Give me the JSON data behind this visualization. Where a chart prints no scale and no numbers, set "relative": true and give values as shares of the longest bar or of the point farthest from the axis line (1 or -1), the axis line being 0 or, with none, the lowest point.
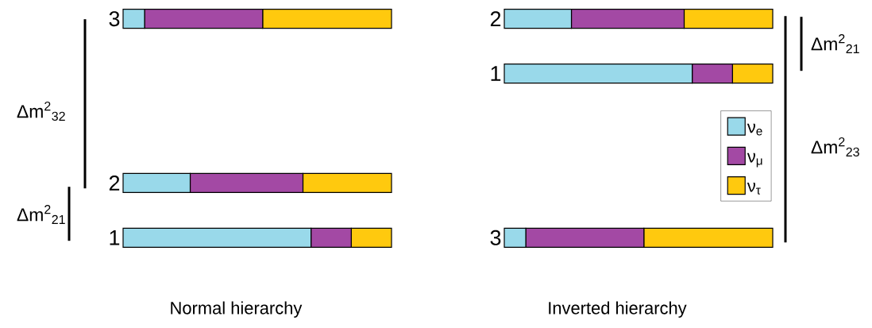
{
  "chart_data": [
    {
      "type": "bar",
      "orientation": "horizontal",
      "stacked": true,
      "relative": true,
      "xlabel": "Normal hierarchy",
      "categories": [
        "3",
        null,
        null,
        "2",
        "1"
      ],
      "series": [
        {
          "color": "#99d9ea",
          "values": [
            0.08,
            null,
            null,
            0.25,
            0.7
          ]
        },
        {
          "color": "#a349a4",
          "values": [
            0.44,
            null,
            null,
            0.42,
            0.15
          ]
        },
        {
          "color": "#ffc90e",
          "values": [
            0.48,
            null,
            null,
            0.33,
            0.15
          ]
        }
      ],
      "annotations": [
        "Δm$^{2}$$_{32}$",
        "Δm$^{2}$$_{21}$"
      ]
    },
    {
      "type": "bar",
      "orientation": "horizontal",
      "stacked": true,
      "relative": true,
      "xlabel": "Inverted hierarchy",
      "categories": [
        "2",
        "1",
        null,
        null,
        "3"
      ],
      "legend": "right",
      "series": [
        {
          "name": "ν$_{e}$",
          "color": "#99d9ea",
          "values": [
            0.25,
            0.7,
            null,
            null,
            0.08
          ]
        },
        {
          "name": "ν$_{μ}$",
          "color": "#a349a4",
          "values": [
            0.42,
            0.15,
            null,
            null,
            0.44
          ]
        },
        {
          "name": "ν$_{τ}$",
          "color": "#ffc90e",
          "values": [
            0.33,
            0.15,
            null,
            null,
            0.48
          ]
        }
      ],
      "annotations": [
        "Δm$^{2}$$_{21}$",
        "Δm$^{2}$$_{23}$"
      ]
    }
  ]
}
